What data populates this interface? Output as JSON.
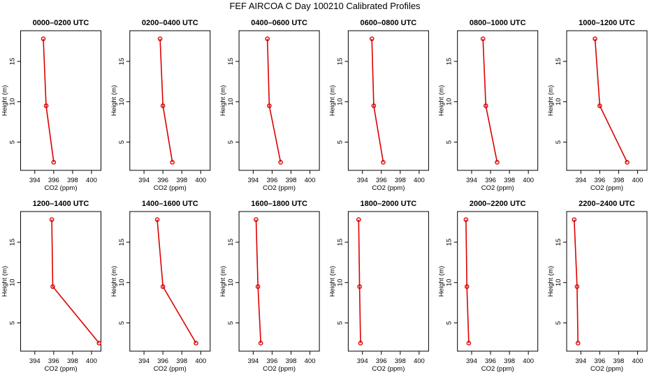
{
  "chart_data": {
    "title": "FEF AIRCOA C  Day 100210  Calibrated Profiles",
    "type": "line",
    "xlabel": "CO2 (ppm)",
    "ylabel": "Height (m)",
    "xlim": [
      392.5,
      401
    ],
    "ylim": [
      1.5,
      18.8
    ],
    "xticks": [
      394,
      396,
      398,
      400
    ],
    "yticks": [
      5,
      10,
      15
    ],
    "line_color": "#dd0000",
    "point_color": "#dd0000",
    "panels": [
      {
        "title": "0000–0200 UTC",
        "co2": [
          394.9,
          395.2,
          396.0
        ],
        "height": [
          17.8,
          9.5,
          2.5
        ]
      },
      {
        "title": "0200–0400 UTC",
        "co2": [
          395.7,
          396.0,
          397.0
        ],
        "height": [
          17.8,
          9.5,
          2.5
        ]
      },
      {
        "title": "0400–0600 UTC",
        "co2": [
          395.5,
          395.7,
          396.9
        ],
        "height": [
          17.8,
          9.5,
          2.5
        ]
      },
      {
        "title": "0600–0800 UTC",
        "co2": [
          395.0,
          395.2,
          396.2
        ],
        "height": [
          17.8,
          9.5,
          2.5
        ]
      },
      {
        "title": "0800–1000 UTC",
        "co2": [
          395.2,
          395.5,
          396.7
        ],
        "height": [
          17.8,
          9.5,
          2.5
        ]
      },
      {
        "title": "1000–1200 UTC",
        "co2": [
          395.5,
          396.0,
          398.9
        ],
        "height": [
          17.8,
          9.5,
          2.5
        ]
      },
      {
        "title": "1200–1400 UTC",
        "co2": [
          395.8,
          395.9,
          400.8
        ],
        "height": [
          17.8,
          9.5,
          2.5
        ]
      },
      {
        "title": "1400–1600 UTC",
        "co2": [
          395.4,
          396.0,
          399.5
        ],
        "height": [
          17.8,
          9.5,
          2.5
        ]
      },
      {
        "title": "1600–1800 UTC",
        "co2": [
          394.3,
          394.5,
          394.8
        ],
        "height": [
          17.8,
          9.5,
          2.5
        ]
      },
      {
        "title": "1800–2000 UTC",
        "co2": [
          393.6,
          393.7,
          393.8
        ],
        "height": [
          17.8,
          9.5,
          2.5
        ]
      },
      {
        "title": "2000–2200 UTC",
        "co2": [
          393.4,
          393.5,
          393.7
        ],
        "height": [
          17.8,
          9.5,
          2.5
        ]
      },
      {
        "title": "2200–2400 UTC",
        "co2": [
          393.3,
          393.6,
          393.7
        ],
        "height": [
          17.8,
          9.5,
          2.5
        ]
      }
    ]
  }
}
